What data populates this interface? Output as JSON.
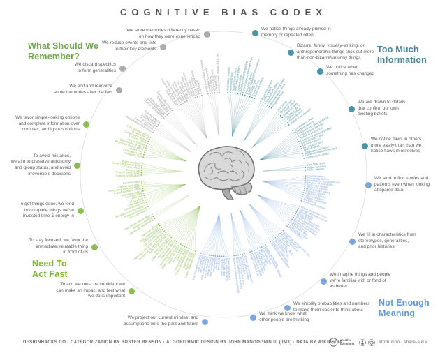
{
  "title": "COGNITIVE BIAS CODEX",
  "footer": {
    "credits": "DESIGNHACKS.CO · CATEGORIZATION BY BUSTER BENSON · ALGORITHMIC DESIGN BY JOHN MANOOGIAN III (JM3) · DATA BY WIKIPEDIA",
    "cc_name": "creative\ncommons",
    "license": "attribution · share-alike"
  },
  "wheel": {
    "categories": [
      {
        "id": "tmi",
        "heading": "Too Much\nInformation",
        "heading_color": "#45889c",
        "color": "#45889c",
        "text_color": "#5b99a9",
        "dot_color": "#4b93a8",
        "groups": [
          {
            "id": "primed",
            "note": "We notice things already primed in\nmemory or repeated often",
            "biases": [
              "Availability heuristic",
              "Attentional bias",
              "Illusory truth effect",
              "Mere exposure effect",
              "Context effect",
              "Cue-dependent forgetting",
              "Mood-congruent memory bias",
              "Frequency illusion",
              "Baader-Meinhof Phenomenon",
              "Empathy gap",
              "Omission bias",
              "Base rate fallacy"
            ]
          },
          {
            "id": "bizarre",
            "note": "Bizarre, funny, visually-striking, or\nanthropomorphic things stick out more\nthan non-bizarre/unfunny things",
            "biases": [
              "Bizarreness effect",
              "Humor effect",
              "Von Restorff effect",
              "Picture superiority effect",
              "Self-relevance effect",
              "Negativity bias"
            ]
          },
          {
            "id": "notice-changed",
            "note": "We notice when\nsomething has changed",
            "biases": [
              "Anchoring",
              "Conservatism",
              "Contrast effect",
              "Distinction bias",
              "Focusing effect",
              "Framing effect",
              "Money illusion",
              "Weber–Fechner law"
            ]
          },
          {
            "id": "drawn-details",
            "note": "We are drawn to details\nthat confirm our own\nexisting beliefs",
            "biases": [
              "Confirmation bias",
              "Congruence bias",
              "Post-purchase rationalization",
              "Choice-supportive bias",
              "Selective perception",
              "Observer-expectancy effect",
              "Experimenter's bias",
              "Observer effect",
              "Expectation bias",
              "Ostrich effect",
              "Subjective validation",
              "Continued influence effect",
              "Semmelweis reflex"
            ]
          },
          {
            "id": "notice-flaws",
            "note": "We notice flaws in others\nmore easily than than we\nnotice flaws in ourselves",
            "biases": [
              "Bias blind spot",
              "Naïve cynicism",
              "Naïve realism"
            ]
          }
        ]
      },
      {
        "id": "nem",
        "heading": "Not Enough\nMeaning",
        "heading_color": "#6297e3",
        "color": "#7da4dd",
        "text_color": "#87a9dd",
        "dot_color": "#7da4dd",
        "groups": [
          {
            "id": "find-stories",
            "note": "We tend to find stories and\npatterns even when looking\nat sparse data",
            "biases": [
              "Confabulation",
              "Clustering illusion",
              "Insensitivity to sample size",
              "Neglect of probability",
              "Anecdotal fallacy",
              "Illusion of validity",
              "Masked man fallacy",
              "Recency illusion",
              "Gambler's fallacy",
              "Hot-hand fallacy",
              "Illusory correlation",
              "Pareidolia",
              "Anthropomorphism"
            ]
          },
          {
            "id": "fill-in",
            "note": "We fill in characteristics from\nstereotypes, generalities,\nand prior histories",
            "biases": [
              "Group attribution error",
              "Ultimate attribution error",
              "Stereotyping",
              "Essentialism",
              "Functional fixedness",
              "Moral credential effect",
              "Just-world hypothesis",
              "Argument from fallacy",
              "Authority bias",
              "Automation bias",
              "Bandwagon effect",
              "Placebo effect"
            ]
          },
          {
            "id": "imagine-familiar",
            "note": "We imagine things and people\nwe're familiar with or fond of\nas better",
            "biases": [
              "Out-group homogeneity bias",
              "Cross-race effect",
              "In-group favoritism",
              "Halo effect",
              "Cheerleader effect",
              "Positivity effect",
              "Not invented here",
              "Reactive devaluation",
              "Well-traveled road effect"
            ]
          },
          {
            "id": "simplify-numbers",
            "note": "We simplify probabilities and numbers\nto make them easier to think about",
            "biases": [
              "Mental accounting",
              "Appeal to probability fallacy",
              "Normalcy bias",
              "Murphy's law",
              "Zero sum bias",
              "Survivorship bias",
              "Subadditivity effect",
              "Denomination effect",
              "Magic number 7±2"
            ]
          },
          {
            "id": "think-we-know",
            "note": "We think we know what\nother people are thinking",
            "biases": [
              "Illusion of transparency",
              "Curse of knowledge",
              "Spotlight effect",
              "Extrinsic incentive error",
              "Illusion of external agency",
              "Illusion of asymmetric insight"
            ]
          },
          {
            "id": "project-mindset",
            "note": "We project our current mindset and\nassumptions onto the past and future",
            "biases": [
              "Telescoping effect",
              "Rosy retrospection",
              "Hindsight bias",
              "Outcome bias",
              "Moral luck",
              "Declinism",
              "Impact bias",
              "Pessimism bias",
              "Planning fallacy",
              "Time-saving bias",
              "Pro-innovation bias",
              "Projection bias",
              "Restraint bias",
              "Self-consistency bias"
            ]
          }
        ]
      },
      {
        "id": "ntaf",
        "heading": "Need To\nAct Fast",
        "heading_color": "#79b829",
        "color": "#8cbd4f",
        "text_color": "#96bf5e",
        "dot_color": "#8cbd4f",
        "groups": [
          {
            "id": "to-act",
            "note": "To act, we must be confident we\ncan make an impact and feel what\nwe do is important",
            "biases": [
              "Overconfidence effect",
              "Egocentric bias",
              "Optimism bias",
              "Social desirability bias",
              "Third-person effect",
              "Forer effect",
              "Barnum effect",
              "Illusion of control",
              "False consensus effect",
              "Dunning-Kruger effect",
              "Hard-easy effect",
              "Illusory superiority",
              "Lake Wobegone effect",
              "Self-serving bias",
              "Actor-observer bias",
              "Fundamental attribution error",
              "Defensive attribution hypothesis",
              "Trait ascription bias",
              "Effort justification",
              "Risk compensation",
              "Peltzman effect"
            ]
          },
          {
            "id": "stay-focused",
            "note": "To stay focused, we favor the\nimmediate, relatable thing\nin front of us",
            "biases": [
              "Hyperbolic discounting",
              "Appeal to novelty",
              "Identifiable victim effect"
            ]
          },
          {
            "id": "get-things-done",
            "note": "To get things done, we tend\nto complete things we've\ninvested time & energy in",
            "biases": [
              "Sunk cost fallacy",
              "Irrational escalation",
              "Escalation of commitment",
              "Generation effect",
              "Loss aversion",
              "IKEA effect",
              "Unit bias",
              "Zero-risk bias",
              "Disposition effect",
              "Pseudocertainty effect",
              "Processing difficulty effect",
              "Endowment effect",
              "Backfire effect"
            ]
          },
          {
            "id": "avoid-mistakes",
            "note": "To avoid mistakes,\nwe aim to preserve autonomy\nand group status, and avoid\nirreversible decisions",
            "biases": [
              "System justification",
              "Reverse psychology",
              "Reactance",
              "Decoy effect",
              "Social comparison bias",
              "Status quo bias"
            ]
          },
          {
            "id": "favor-simple",
            "note": "We favor simple-looking options\nand complete information over\ncomplex, ambiguous options",
            "biases": [
              "Ambiguity bias",
              "Information bias",
              "Belief bias",
              "Rhyme as reason effect",
              "Bike-shedding effect",
              "Law of Triviality",
              "Delmore effect",
              "Conjunction fallacy",
              "Occam's razor",
              "Less-is-better effect"
            ]
          }
        ]
      },
      {
        "id": "wswr",
        "heading": "What Should We\nRemember?",
        "heading_color": "#6ba84a",
        "color": "#b0b0b0",
        "text_color": "#9a9a9a",
        "dot_color": "#ababab",
        "groups": [
          {
            "id": "edit-reinforce",
            "note": "We edit and reinforce\nsome memories after the fact",
            "biases": [
              "Misattribution of memory",
              "Source confusion",
              "Cryptomnesia",
              "False memory",
              "Suggestibility",
              "Spacing effect"
            ]
          },
          {
            "id": "discard-specifics",
            "note": "We discard specifics\nto form generalities",
            "biases": [
              "Implicit associations",
              "Implicit stereotypes",
              "Stereotypical bias",
              "Prejudice",
              "Negativity bias",
              "Fading affect bias"
            ]
          },
          {
            "id": "reduce-events",
            "note": "We reduce events and lists\nto their key elements",
            "biases": [
              "Peak–end rule",
              "Leveling and sharpening",
              "Misinformation effect",
              "Duration neglect",
              "Serial recall effect",
              "List-length effect",
              "Modality effect",
              "Memory inhibition",
              "Part-list cueing effect",
              "Primacy effect",
              "Recency effect",
              "Serial position effect",
              "Suffix effect"
            ]
          },
          {
            "id": "store-memories",
            "note": "We store memories differently based\non how they were experienced",
            "biases": [
              "Levels of processing effect",
              "Absent-mindedness",
              "Testing effect",
              "Next-in-line effect",
              "Google effect",
              "Tip of the tongue phenomenon"
            ]
          }
        ]
      }
    ]
  }
}
